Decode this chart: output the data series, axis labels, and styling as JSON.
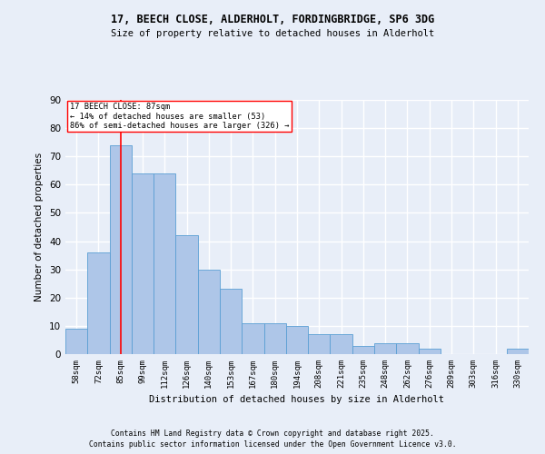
{
  "title1": "17, BEECH CLOSE, ALDERHOLT, FORDINGBRIDGE, SP6 3DG",
  "title2": "Size of property relative to detached houses in Alderholt",
  "xlabel": "Distribution of detached houses by size in Alderholt",
  "ylabel": "Number of detached properties",
  "categories": [
    "58sqm",
    "72sqm",
    "85sqm",
    "99sqm",
    "112sqm",
    "126sqm",
    "140sqm",
    "153sqm",
    "167sqm",
    "180sqm",
    "194sqm",
    "208sqm",
    "221sqm",
    "235sqm",
    "248sqm",
    "262sqm",
    "276sqm",
    "289sqm",
    "303sqm",
    "316sqm",
    "330sqm"
  ],
  "values": [
    9,
    36,
    74,
    64,
    64,
    42,
    30,
    23,
    11,
    11,
    10,
    7,
    7,
    3,
    4,
    4,
    2,
    0,
    0,
    0,
    2
  ],
  "bar_color": "#aec6e8",
  "bar_edge_color": "#5a9fd4",
  "red_line_x": 2,
  "annotation_text": "17 BEECH CLOSE: 87sqm\n← 14% of detached houses are smaller (53)\n86% of semi-detached houses are larger (326) →",
  "annotation_box_color": "white",
  "annotation_box_edge": "red",
  "ylim": [
    0,
    90
  ],
  "yticks": [
    0,
    10,
    20,
    30,
    40,
    50,
    60,
    70,
    80,
    90
  ],
  "footer1": "Contains HM Land Registry data © Crown copyright and database right 2025.",
  "footer2": "Contains public sector information licensed under the Open Government Licence v3.0.",
  "background_color": "#e8eef8",
  "grid_color": "#ffffff"
}
